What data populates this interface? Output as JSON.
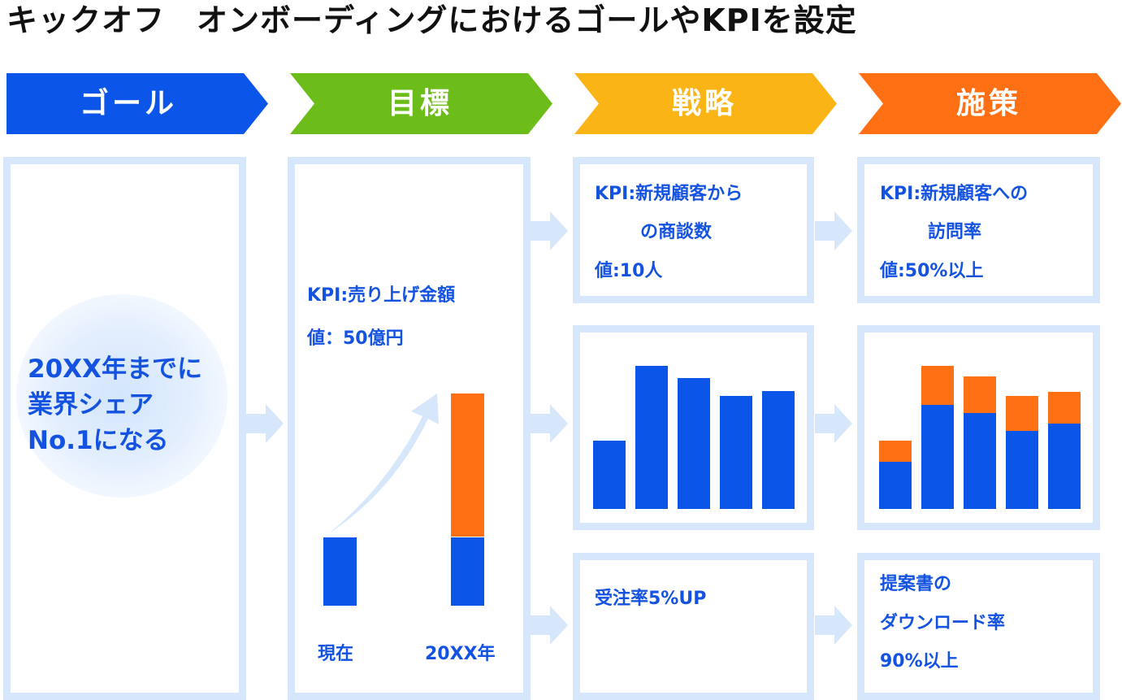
{
  "title": "キックオフ　オンボーディングにおけるゴールやKPIを設定",
  "columns": [
    {
      "label": "ゴール",
      "color": "#0b55e8"
    },
    {
      "label": "目標",
      "color": "#6cbd1a"
    },
    {
      "label": "戦略",
      "color": "#fbb416"
    },
    {
      "label": "施策",
      "color": "#ff7015"
    }
  ],
  "goal": {
    "lines": [
      "20XX年までに",
      "業界シェア",
      "No.1になる"
    ]
  },
  "target": {
    "kpi": "KPI:売り上げ金額",
    "value": "値：50億円",
    "chart_labels": [
      "現在",
      "20XX年"
    ]
  },
  "strategy": {
    "box1": [
      "KPI:新規顧客から",
      "の商談数",
      "値:10人"
    ],
    "box3": "受注率5%UP"
  },
  "measures": {
    "box1": [
      "KPI:新規顧客への",
      "訪問率",
      "値:50%以上"
    ],
    "box3": [
      "提案書の",
      "ダウンロード率",
      "90%以上"
    ]
  },
  "chart_data": [
    {
      "type": "bar",
      "categories": [
        "現在",
        "20XX年"
      ],
      "series": [
        {
          "values": [
            100,
            100
          ],
          "color": "#0b55e8"
        },
        {
          "values": [
            0,
            209
          ],
          "color": "#ff7015"
        }
      ]
    },
    {
      "type": "bar",
      "categories": [
        "1",
        "2",
        "3",
        "4",
        "5"
      ],
      "series": [
        {
          "values": [
            84,
            176,
            161,
            139,
            145
          ],
          "color": "#0b55e8"
        }
      ],
      "ylim": [
        0,
        190
      ]
    },
    {
      "type": "bar",
      "categories": [
        "1",
        "2",
        "3",
        "4",
        "5"
      ],
      "series": [
        {
          "values": [
            58,
            128,
            118,
            96,
            105
          ],
          "color": "#0b55e8"
        },
        {
          "values": [
            26,
            48,
            45,
            43,
            39
          ],
          "color": "#ff7015"
        }
      ],
      "ylim": [
        0,
        190
      ]
    }
  ]
}
